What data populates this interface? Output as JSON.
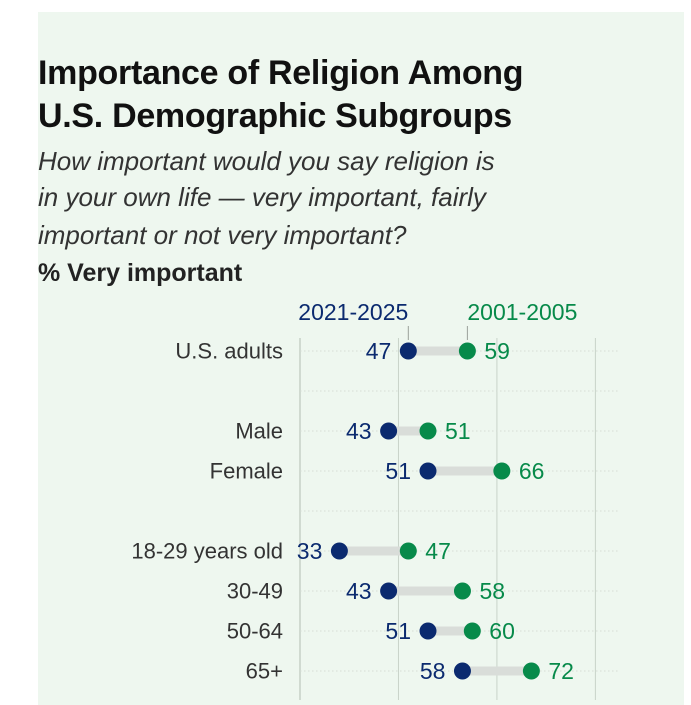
{
  "title_lines": [
    "Importance of Religion Among",
    "U.S. Demographic Subgroups"
  ],
  "subtitle_lines": [
    "How important would you say religion is",
    "in your own life — very important, fairly",
    "important or not very important?"
  ],
  "measure_label": "% Very important",
  "colors": {
    "background": "#eef7ef",
    "recent": "#0b2a6f",
    "earlier": "#078a4a",
    "connector": "#d9ddd9",
    "grid": "#c8d3c9",
    "row_grid": "#d5dcd5",
    "label": "#333333"
  },
  "chart_data": {
    "type": "dumbbell",
    "title": "Importance of Religion Among U.S. Demographic Subgroups",
    "measure": "% Very important",
    "series": [
      {
        "name": "2021-2025",
        "values": [
          47,
          43,
          51,
          33,
          43,
          51,
          58
        ]
      },
      {
        "name": "2001-2005",
        "values": [
          59,
          51,
          66,
          47,
          58,
          60,
          72
        ]
      }
    ],
    "categories": [
      "U.S. adults",
      "Male",
      "Female",
      "18-29 years old",
      "30-49",
      "50-64",
      "65+"
    ],
    "groups": [
      [
        0
      ],
      [
        1,
        2
      ],
      [
        3,
        4,
        5,
        6
      ]
    ],
    "xlim": [
      25,
      90
    ],
    "x_gridlines": [
      25,
      45,
      65,
      85
    ],
    "legend": "top"
  }
}
